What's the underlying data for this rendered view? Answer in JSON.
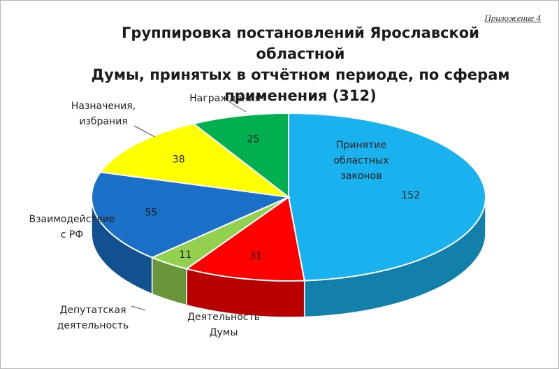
{
  "header": {
    "appendix": "Приложение 4"
  },
  "chart_data": {
    "type": "pie",
    "title": "Группировка постановлений Ярославской областной Думы, принятых в отчётном периоде, по сферам применения (312)",
    "title_lines": [
      "Группировка постановлений Ярославской областной",
      "Думы, принятых в отчётном периоде, по сферам",
      "применения (312)"
    ],
    "style": "3d",
    "legend": "none",
    "slices": [
      {
        "label_lines": [
          "Принятие",
          "областных",
          "законов"
        ],
        "value": 152,
        "color": "#1ab2ee"
      },
      {
        "label_lines": [
          "Деятельность",
          "Думы"
        ],
        "value": 31,
        "color": "#ff0000"
      },
      {
        "label_lines": [
          "Депутатская",
          "деятельность"
        ],
        "value": 11,
        "color": "#92d050"
      },
      {
        "label_lines": [
          "Взаимодействие",
          "с РФ"
        ],
        "value": 55,
        "color": "#1a6fc6"
      },
      {
        "label_lines": [
          "Назначения,",
          "избрания"
        ],
        "value": 38,
        "color": "#ffff00"
      },
      {
        "label_lines": [
          "Награждения"
        ],
        "value": 25,
        "color": "#00b050"
      }
    ]
  }
}
